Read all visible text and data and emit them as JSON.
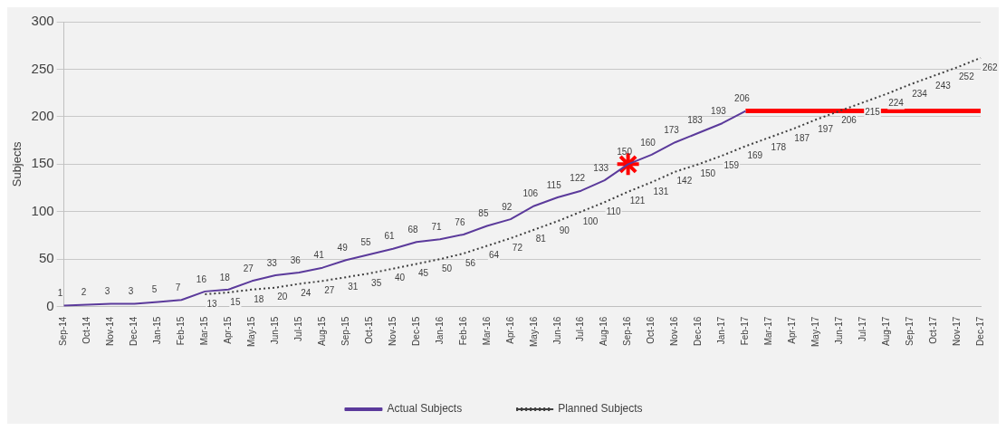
{
  "chart_data": {
    "type": "line",
    "ylabel": "Subjects",
    "categories": [
      "Sep-14",
      "Oct-14",
      "Nov-14",
      "Dec-14",
      "Jan-15",
      "Feb-15",
      "Mar-15",
      "Apr-15",
      "May-15",
      "Jun-15",
      "Jul-15",
      "Aug-15",
      "Sep-15",
      "Oct-15",
      "Nov-15",
      "Dec-15",
      "Jan-16",
      "Feb-16",
      "Mar-16",
      "Apr-16",
      "May-16",
      "Jun-16",
      "Jul-16",
      "Aug-16",
      "Sep-16",
      "Oct-16",
      "Nov-16",
      "Dec-16",
      "Jan-17",
      "Feb-17",
      "Mar-17",
      "Apr-17",
      "May-17",
      "Jun-17",
      "Jul-17",
      "Aug-17",
      "Sep-17",
      "Oct-17",
      "Nov-17",
      "Dec-17"
    ],
    "series": [
      {
        "name": "Actual Subjects",
        "color": "#5b3a9b",
        "line_style": "solid",
        "marker": "none",
        "values": [
          1,
          2,
          3,
          3,
          5,
          7,
          16,
          18,
          27,
          33,
          36,
          41,
          49,
          55,
          61,
          68,
          71,
          76,
          85,
          92,
          106,
          115,
          122,
          133,
          150,
          160,
          173,
          183,
          193,
          206,
          null,
          null,
          null,
          null,
          null,
          null,
          null,
          null,
          null,
          null
        ],
        "value_labels": [
          "1",
          "2",
          "3",
          "3",
          "5",
          "7",
          "16",
          "18",
          "27",
          "33",
          "36",
          "41",
          "49",
          "55",
          "61",
          "68",
          "71",
          "76",
          "85",
          "92",
          "106",
          "115",
          "122",
          "133",
          "150",
          "160",
          "173",
          "183",
          "193",
          "206",
          null,
          null,
          null,
          null,
          null,
          null,
          null,
          null,
          null,
          null
        ]
      },
      {
        "name": "Planned Subjects",
        "color": "#404040",
        "line_style": "dotted",
        "marker": "none",
        "values": [
          null,
          null,
          null,
          null,
          null,
          null,
          13,
          15,
          18,
          20,
          24,
          27,
          31,
          35,
          40,
          45,
          50,
          56,
          64,
          72,
          81,
          90,
          100,
          110,
          121,
          131,
          142,
          150,
          159,
          169,
          178,
          187,
          197,
          206,
          215,
          224,
          234,
          243,
          252,
          262
        ],
        "value_labels": [
          null,
          null,
          null,
          null,
          null,
          null,
          "13",
          "15",
          "18",
          "20",
          "24",
          "27",
          "31",
          "35",
          "40",
          "45",
          "50",
          "56",
          "64",
          "72",
          "81",
          "90",
          "100",
          "110",
          "121",
          "131",
          "142",
          "150",
          "159",
          "169",
          "178",
          "187",
          "197",
          "206",
          "215",
          "224",
          "234",
          "243",
          "252",
          "262"
        ]
      },
      {
        "type": "line",
        "color": "#ff0000",
        "line_style": "solid",
        "marker": "none",
        "values": [
          null,
          null,
          null,
          null,
          null,
          null,
          null,
          null,
          null,
          null,
          null,
          null,
          null,
          null,
          null,
          null,
          null,
          null,
          null,
          null,
          null,
          null,
          null,
          null,
          null,
          null,
          null,
          null,
          null,
          206,
          206,
          206,
          206,
          206,
          206,
          206,
          206,
          206,
          206,
          206
        ]
      },
      {
        "type": "scatter",
        "color": "#ff0000",
        "marker": "cross",
        "x": [
          "Sep-16"
        ],
        "values": [
          150
        ]
      }
    ],
    "ylim": [
      0,
      300
    ],
    "yticks": [
      0,
      50,
      100,
      150,
      200,
      250,
      300
    ],
    "grid": "y",
    "legend": "bottom"
  }
}
